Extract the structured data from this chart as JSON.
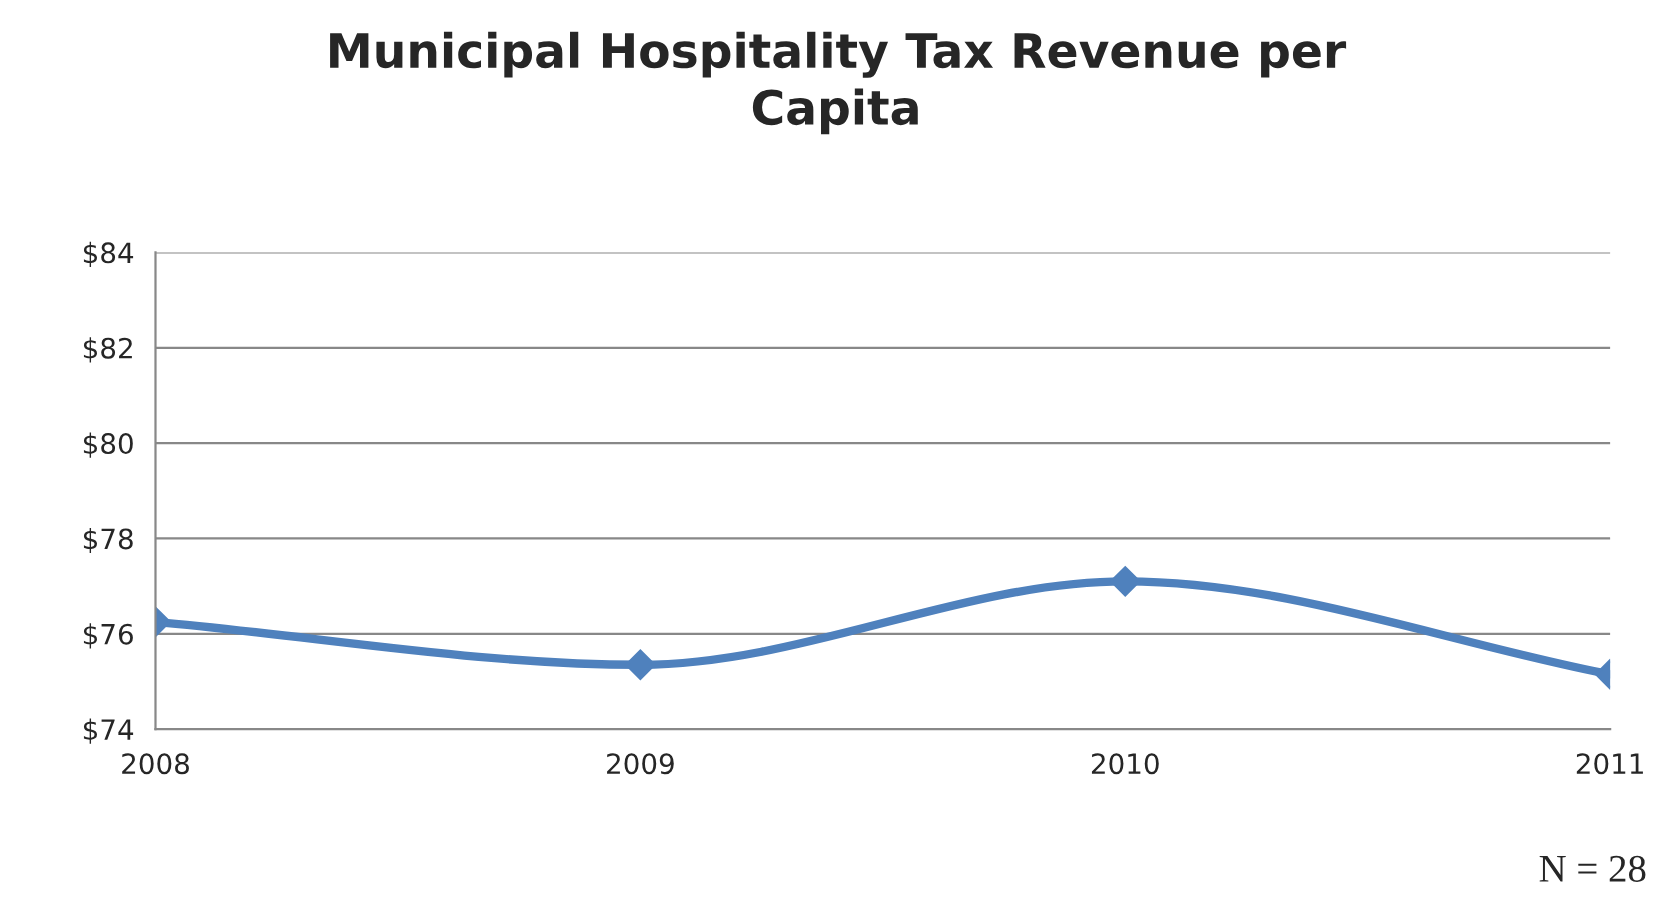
{
  "chart_data": {
    "type": "line",
    "title": "Municipal Hospitality Tax Revenue per\nCapita",
    "categories": [
      "2008",
      "2009",
      "2010",
      "2011"
    ],
    "series": [
      {
        "color": "#4f81bd",
        "values": [
          76.25,
          75.35,
          77.1,
          75.15
        ]
      }
    ],
    "ylim": [
      74,
      84
    ],
    "yticks": [
      {
        "value": 74,
        "label": "$74"
      },
      {
        "value": 76,
        "label": "$76"
      },
      {
        "value": 78,
        "label": "$78"
      },
      {
        "value": 80,
        "label": "$80"
      },
      {
        "value": 82,
        "label": "$82"
      },
      {
        "value": 84,
        "label": "$84"
      }
    ],
    "grid": "y",
    "marker": "diamond",
    "line_style": "solid",
    "legend": false,
    "annotations": [
      "N = 28"
    ]
  }
}
